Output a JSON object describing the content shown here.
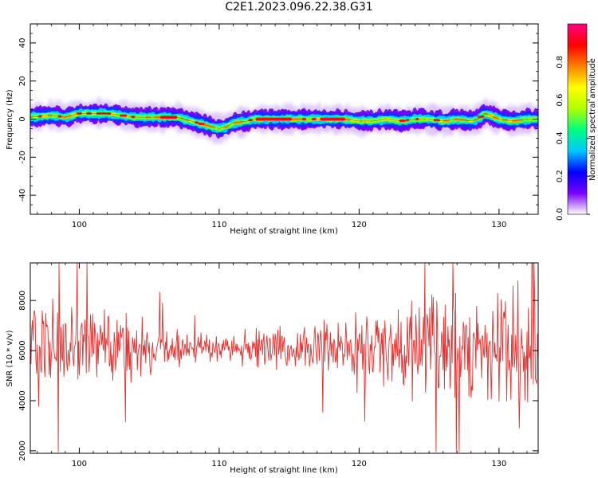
{
  "title": "C2E1.2023.096.22.38.G31",
  "chart_data": [
    {
      "type": "heatmap",
      "xlabel": "Height of straight line (km)",
      "ylabel": "Frequency (Hz)",
      "xlim": [
        96.5,
        132.8
      ],
      "ylim": [
        -50,
        50
      ],
      "xticks": [
        100,
        110,
        120,
        130
      ],
      "yticks": [
        40,
        20,
        0,
        -20,
        -40
      ],
      "colorbar": {
        "label": "Normalized spectral amplitude",
        "range": [
          0.0,
          1.0
        ],
        "ticks": [
          "0.0",
          "0.2",
          "0.4",
          "0.6",
          "0.8"
        ],
        "colors": [
          "#ffffff",
          "#7a00ff",
          "#0000ff",
          "#00c8ff",
          "#00ff80",
          "#b0ff00",
          "#ffff00",
          "#ff8000",
          "#ff0000",
          "#ff0080"
        ]
      },
      "ridge": {
        "x": [
          96.5,
          98,
          99,
          100,
          101,
          102,
          103,
          104,
          105,
          106,
          107,
          107.5,
          108,
          108.5,
          109,
          109.5,
          110,
          110.5,
          111,
          112,
          112.5,
          113,
          114,
          115,
          116,
          117,
          118,
          119,
          120,
          121,
          122,
          123,
          124,
          125,
          126,
          127,
          128,
          128.5,
          129,
          130,
          131,
          132,
          132.8
        ],
        "y": [
          1,
          2,
          1,
          3,
          3,
          3,
          2,
          1,
          1,
          1,
          1,
          0,
          -1,
          -2,
          -3,
          -4,
          -5,
          -4,
          -2,
          -1,
          0,
          0,
          0,
          0,
          0,
          0,
          0,
          0,
          -1,
          -1,
          0,
          -1,
          0,
          0,
          -1,
          0,
          -1,
          0,
          3,
          0,
          -1,
          0,
          0
        ]
      }
    },
    {
      "type": "line",
      "xlabel": "Height of straight line (km)",
      "ylabel": "SNR (10 * v/v)",
      "xlim": [
        96.5,
        132.8
      ],
      "ylim": [
        1900,
        9500
      ],
      "xticks": [
        100,
        110,
        120,
        130
      ],
      "yticks": [
        2000,
        4000,
        6000,
        8000
      ],
      "line_color": "#e8302e",
      "series": [
        {
          "x_start": 96.5,
          "x_step": 0.05,
          "envelope_x": [
            96.5,
            98,
            100,
            103,
            106,
            110,
            113,
            116,
            118,
            120,
            122,
            124,
            126,
            128,
            130,
            131.5,
            132.8
          ],
          "envelope_amp": [
            2000,
            1800,
            1700,
            1400,
            700,
            500,
            700,
            900,
            1100,
            1200,
            1500,
            1600,
            1700,
            1800,
            1900,
            2400,
            2600
          ],
          "mean": 6100
        }
      ]
    }
  ]
}
